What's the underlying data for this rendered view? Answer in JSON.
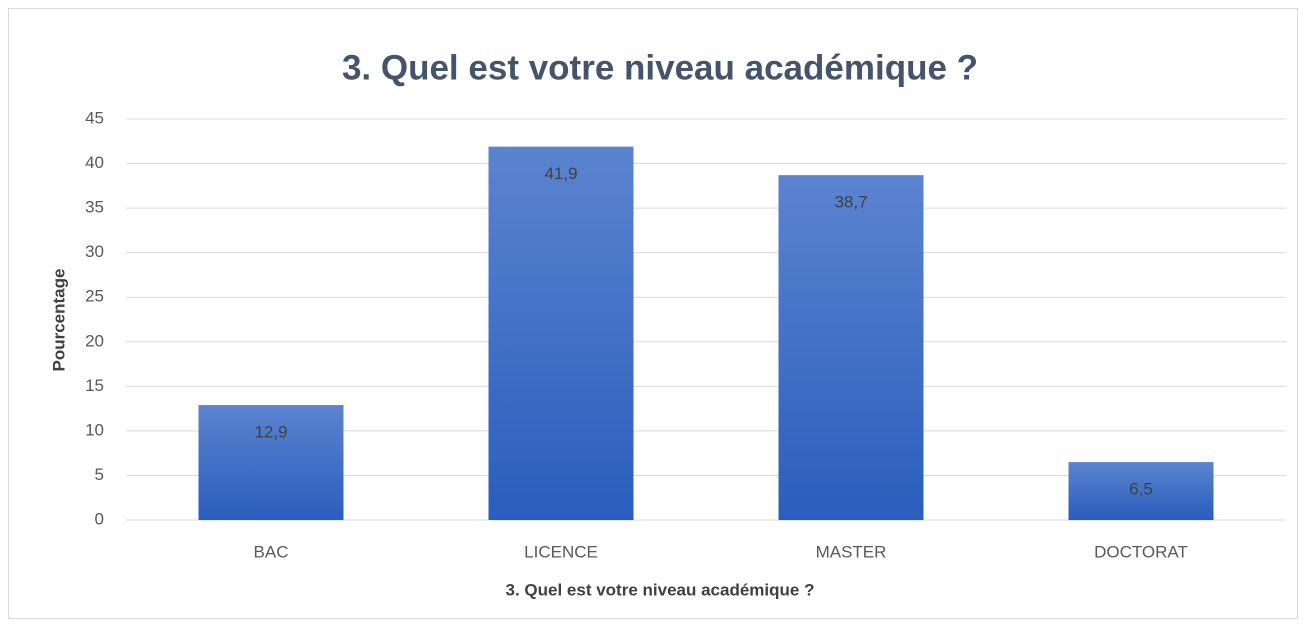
{
  "chart_data": {
    "type": "bar",
    "title": "3. Quel est votre niveau académique ?",
    "x_label": "3. Quel est votre niveau académique ?",
    "y_label": "Pourcentage",
    "categories": [
      "BAC",
      "LICENCE",
      "MASTER",
      "DOCTORAT"
    ],
    "values": [
      12.9,
      41.9,
      38.7,
      6.5
    ],
    "value_labels": [
      "12,9",
      "41,9",
      "38,7",
      "6,5"
    ],
    "color": "#4472c4",
    "ylim": [
      0,
      45
    ],
    "yticks": [
      0,
      5,
      10,
      15,
      20,
      25,
      30,
      35,
      40,
      45
    ],
    "grid": true
  }
}
